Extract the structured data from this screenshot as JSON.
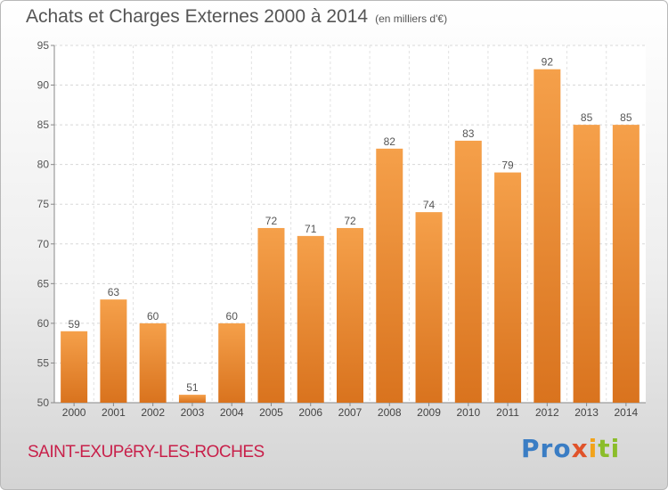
{
  "chart_data": {
    "type": "bar",
    "title": "Achats et Charges Externes 2000 à 2014",
    "subtitle": "(en milliers d'€)",
    "categories": [
      "2000",
      "2001",
      "2002",
      "2003",
      "2004",
      "2005",
      "2006",
      "2007",
      "2008",
      "2009",
      "2010",
      "2011",
      "2012",
      "2013",
      "2014"
    ],
    "values": [
      59,
      63,
      60,
      51,
      60,
      72,
      71,
      72,
      82,
      74,
      83,
      79,
      92,
      85,
      85
    ],
    "ylim": [
      50,
      95
    ],
    "yticks": [
      50,
      55,
      60,
      65,
      70,
      75,
      80,
      85,
      90,
      95
    ],
    "grid": true,
    "bar_color_top": "#f5a04a",
    "bar_color_bottom": "#d9731e"
  },
  "footer": {
    "place": "SAINT-EXUPéRY-LES-ROCHES",
    "logo": {
      "p1": "Pro",
      "p2": "x",
      "p3": "i",
      "p4": "ti"
    }
  }
}
